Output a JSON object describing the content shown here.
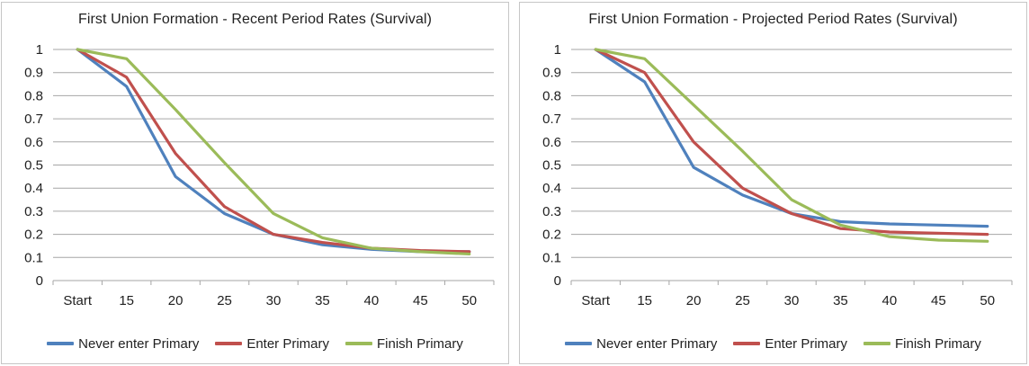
{
  "colors": {
    "series_blue": "#4f81bd",
    "series_red": "#c0504d",
    "series_green": "#9bbb59",
    "gridline": "#a6a6a6",
    "axis_tick": "#a6a6a6",
    "panel_border": "#c6c6c6",
    "text": "#1f1f1f",
    "background": "#ffffff"
  },
  "axis": {
    "x_tick_labels": [
      "Start",
      "15",
      "20",
      "25",
      "30",
      "35",
      "40",
      "45",
      "50"
    ],
    "y_tick_labels": [
      "1",
      "0.9",
      "0.8",
      "0.7",
      "0.6",
      "0.5",
      "0.4",
      "0.3",
      "0.2",
      "0.1",
      "0"
    ]
  },
  "chart_data": [
    {
      "type": "line",
      "title": "First Union Formation - Recent Period Rates (Survival)",
      "categories": [
        "Start",
        "15",
        "20",
        "25",
        "30",
        "35",
        "40",
        "45",
        "50"
      ],
      "ylim": [
        0,
        1
      ],
      "ytick_step": 0.1,
      "grid": true,
      "legend_position": "bottom",
      "series": [
        {
          "name": "Never enter Primary",
          "color": "#4f81bd",
          "values": [
            1.0,
            0.84,
            0.45,
            0.29,
            0.2,
            0.155,
            0.135,
            0.125,
            0.125
          ]
        },
        {
          "name": "Enter Primary",
          "color": "#c0504d",
          "values": [
            1.0,
            0.88,
            0.55,
            0.32,
            0.2,
            0.165,
            0.14,
            0.13,
            0.125
          ]
        },
        {
          "name": "Finish Primary",
          "color": "#9bbb59",
          "values": [
            1.0,
            0.96,
            0.74,
            0.51,
            0.29,
            0.185,
            0.14,
            0.125,
            0.115
          ]
        }
      ]
    },
    {
      "type": "line",
      "title": "First Union Formation - Projected Period Rates (Survival)",
      "categories": [
        "Start",
        "15",
        "20",
        "25",
        "30",
        "35",
        "40",
        "45",
        "50"
      ],
      "ylim": [
        0,
        1
      ],
      "ytick_step": 0.1,
      "grid": true,
      "legend_position": "bottom",
      "series": [
        {
          "name": "Never enter Primary",
          "color": "#4f81bd",
          "values": [
            1.0,
            0.86,
            0.49,
            0.37,
            0.29,
            0.255,
            0.245,
            0.24,
            0.235
          ]
        },
        {
          "name": "Enter Primary",
          "color": "#c0504d",
          "values": [
            1.0,
            0.9,
            0.6,
            0.4,
            0.29,
            0.225,
            0.21,
            0.205,
            0.2
          ]
        },
        {
          "name": "Finish Primary",
          "color": "#9bbb59",
          "values": [
            1.0,
            0.96,
            0.76,
            0.56,
            0.35,
            0.24,
            0.19,
            0.175,
            0.17
          ]
        }
      ]
    }
  ]
}
